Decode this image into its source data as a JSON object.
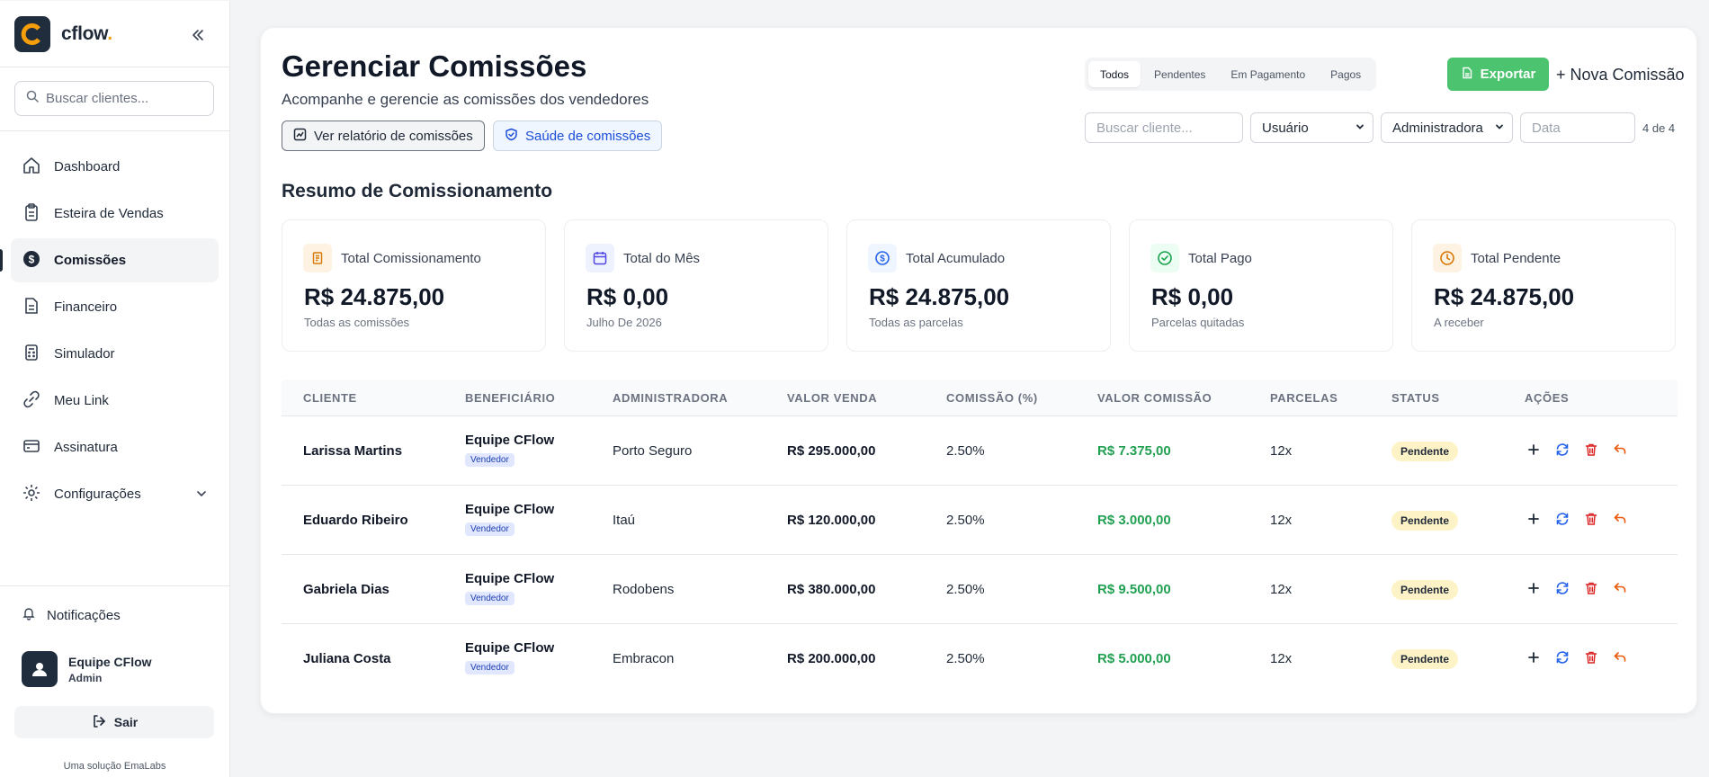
{
  "app": {
    "brand": "cflow",
    "brand_dot": "."
  },
  "sidebar": {
    "search_placeholder": "Buscar clientes...",
    "items": [
      {
        "label": "Dashboard",
        "icon": "home-icon"
      },
      {
        "label": "Esteira de Vendas",
        "icon": "clipboard-icon"
      },
      {
        "label": "Comissões",
        "icon": "dollar-circle-icon",
        "active": true
      },
      {
        "label": "Financeiro",
        "icon": "document-icon"
      },
      {
        "label": "Simulador",
        "icon": "calculator-icon"
      },
      {
        "label": "Meu Link",
        "icon": "link-icon"
      },
      {
        "label": "Assinatura",
        "icon": "credit-card-icon"
      },
      {
        "label": "Configurações",
        "icon": "gear-icon"
      }
    ],
    "notifications": "Notificações",
    "user": {
      "name": "Equipe CFlow",
      "role": "Admin"
    },
    "logout": "Sair",
    "footer": "Uma solução EmaLabs"
  },
  "header": {
    "title": "Gerenciar Comissões",
    "subtitle": "Acompanhe e gerencie as comissões dos vendedores",
    "report_button": "Ver relatório de comissões",
    "health_button": "Saúde de comissões",
    "tabs": [
      "Todos",
      "Pendentes",
      "Em Pagamento",
      "Pagos"
    ],
    "active_tab": "Todos",
    "export_button": "Exportar",
    "new_button": "+ Nova Comissão"
  },
  "filters": {
    "client_placeholder": "Buscar cliente...",
    "user_select": "Usuário",
    "admin_select": "Administradora",
    "date_placeholder": "Data",
    "count": "4 de 4"
  },
  "summary": {
    "title": "Resumo de Comissionamento",
    "cards": [
      {
        "label": "Total Comissionamento",
        "value": "R$ 24.875,00",
        "sub": "Todas as comissões",
        "icon": "receipt-icon",
        "color": "#d97706",
        "bg": "#fef3e2"
      },
      {
        "label": "Total do Mês",
        "value": "R$ 0,00",
        "sub": "Julho De 2026",
        "icon": "calendar-icon",
        "color": "#4f46e5",
        "bg": "#eef2ff"
      },
      {
        "label": "Total Acumulado",
        "value": "R$ 24.875,00",
        "sub": "Todas as parcelas",
        "icon": "dollar-circle-icon",
        "color": "#2563eb",
        "bg": "#eff6ff"
      },
      {
        "label": "Total Pago",
        "value": "R$ 0,00",
        "sub": "Parcelas quitadas",
        "icon": "check-circle-icon",
        "color": "#16a34a",
        "bg": "#ecfdf3"
      },
      {
        "label": "Total Pendente",
        "value": "R$ 24.875,00",
        "sub": "A receber",
        "icon": "clock-icon",
        "color": "#d97706",
        "bg": "#fef3e2"
      }
    ]
  },
  "table": {
    "columns": [
      "CLIENTE",
      "BENEFICIÁRIO",
      "ADMINISTRADORA",
      "VALOR VENDA",
      "COMISSÃO (%)",
      "VALOR COMISSÃO",
      "PARCELAS",
      "STATUS",
      "AÇÕES"
    ],
    "rows": [
      {
        "client": "Larissa Martins",
        "beneficiary": "Equipe CFlow",
        "role": "Vendedor",
        "admin": "Porto Seguro",
        "sale": "R$ 295.000,00",
        "pct": "2.50%",
        "commission": "R$ 7.375,00",
        "installments": "12x",
        "status": "Pendente"
      },
      {
        "client": "Eduardo Ribeiro",
        "beneficiary": "Equipe CFlow",
        "role": "Vendedor",
        "admin": "Itaú",
        "sale": "R$ 120.000,00",
        "pct": "2.50%",
        "commission": "R$ 3.000,00",
        "installments": "12x",
        "status": "Pendente"
      },
      {
        "client": "Gabriela Dias",
        "beneficiary": "Equipe CFlow",
        "role": "Vendedor",
        "admin": "Rodobens",
        "sale": "R$ 380.000,00",
        "pct": "2.50%",
        "commission": "R$ 9.500,00",
        "installments": "12x",
        "status": "Pendente"
      },
      {
        "client": "Juliana Costa",
        "beneficiary": "Equipe CFlow",
        "role": "Vendedor",
        "admin": "Embracon",
        "sale": "R$ 200.000,00",
        "pct": "2.50%",
        "commission": "R$ 5.000,00",
        "installments": "12x",
        "status": "Pendente"
      }
    ]
  },
  "colors": {
    "accent": "#f59e0b",
    "brand_dark": "#1f2d3d",
    "success": "#4cc46f",
    "green_text": "#22a052",
    "pending_bg": "#fef3c7"
  }
}
